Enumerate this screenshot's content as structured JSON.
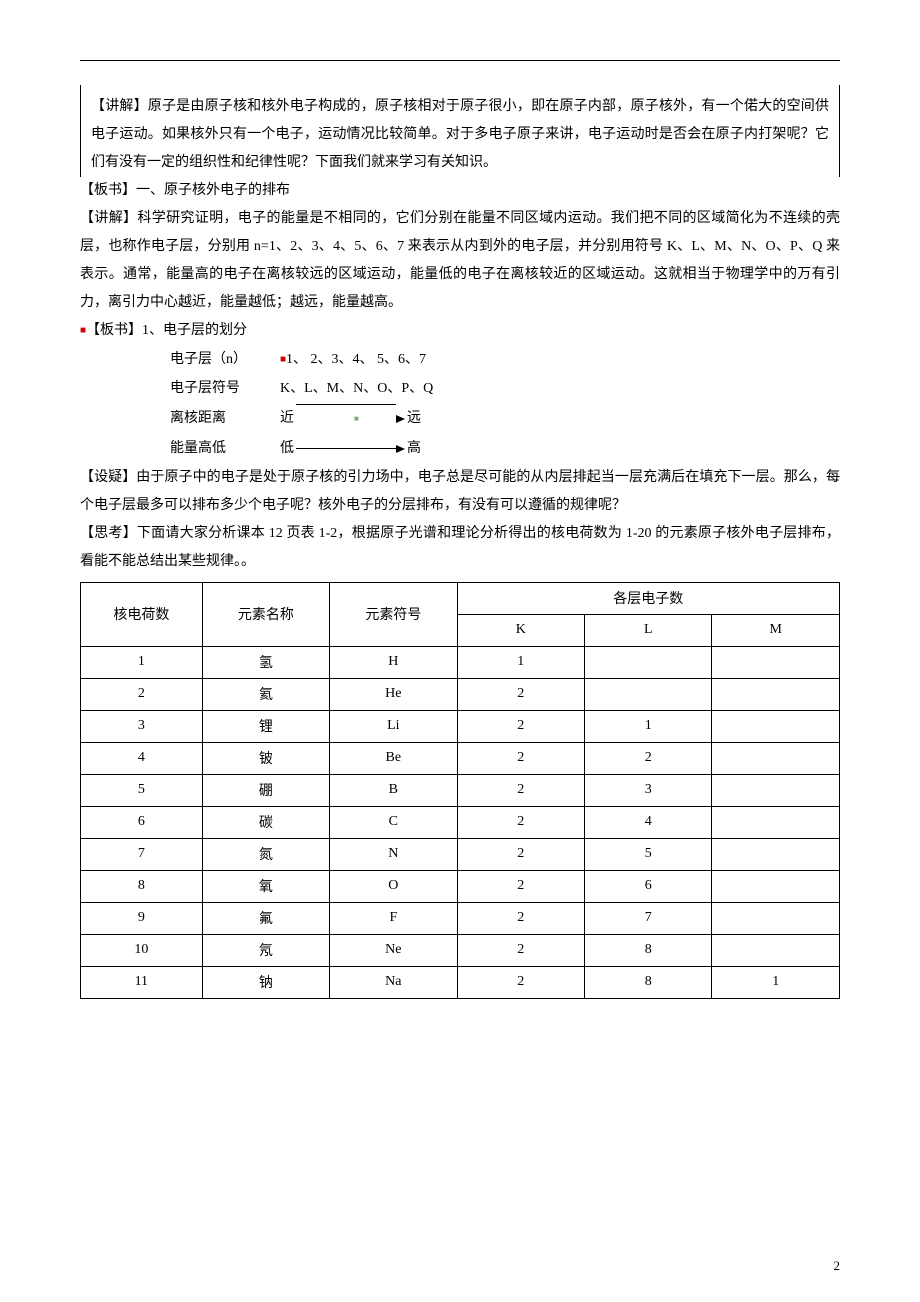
{
  "para1": "【讲解】原子是由原子核和核外电子构成的，原子核相对于原子很小，即在原子内部，原子核外，有一个偌大的空间供电子运动。如果核外只有一个电子，运动情况比较简单。对于多电子原子来讲，电子运动时是否会在原子内打架呢？它们有没有一定的组织性和纪律性呢？下面我们就来学习有关知识。",
  "section1": "【板书】一、原子核外电子的排布",
  "para2": "【讲解】科学研究证明，电子的能量是不相同的，它们分别在能量不同区域内运动。我们把不同的区域简化为不连续的壳层，也称作电子层，分别用 n=1、2、3、4、5、6、7 来表示从内到外的电子层，并分别用符号 K、L、M、N、O、P、Q 来表示。通常，能量高的电子在离核较远的区域运动，能量低的电子在离核较近的区域运动。这就相当于物理学中的万有引力，离引力中心越近，能量越低；越远，能量越高。",
  "section2": "【板书】1、电子层的划分",
  "layers": {
    "r1_label": "电子层（n）",
    "r1_val": "1、 2、3、4、 5、6、7",
    "r2_label": "电子层符号",
    "r2_val": "K、L、M、N、O、P、Q",
    "r3_label": "离核距离",
    "r3_left": "近",
    "r3_right": "远",
    "r4_label": "能量高低",
    "r4_left": "低",
    "r4_right": "高"
  },
  "para3": "【设疑】由于原子中的电子是处于原子核的引力场中，电子总是尽可能的从内层排起当一层充满后在填充下一层。那么，每个电子层最多可以排布多少个电子呢？核外电子的分层排布，有没有可以遵循的规律呢？",
  "para4": "【思考】下面请大家分析课本 12 页表 1-2，根据原子光谱和理论分析得出的核电荷数为 1-20 的元素原子核外电子层排布，看能不能总结出某些规律。。",
  "table": {
    "headers": {
      "c1": "核电荷数",
      "c2": "元素名称",
      "c3": "元素符号",
      "c4": "各层电子数",
      "k": "K",
      "l": "L",
      "m": "M"
    },
    "rows": [
      {
        "n": "1",
        "name": "氢",
        "sym": "H",
        "k": "1",
        "l": "",
        "m": ""
      },
      {
        "n": "2",
        "name": "氦",
        "sym": "He",
        "k": "2",
        "l": "",
        "m": ""
      },
      {
        "n": "3",
        "name": "锂",
        "sym": "Li",
        "k": "2",
        "l": "1",
        "m": ""
      },
      {
        "n": "4",
        "name": "铍",
        "sym": "Be",
        "k": "2",
        "l": "2",
        "m": ""
      },
      {
        "n": "5",
        "name": "硼",
        "sym": "B",
        "k": "2",
        "l": "3",
        "m": ""
      },
      {
        "n": "6",
        "name": "碳",
        "sym": "C",
        "k": "2",
        "l": "4",
        "m": ""
      },
      {
        "n": "7",
        "name": "氮",
        "sym": "N",
        "k": "2",
        "l": "5",
        "m": ""
      },
      {
        "n": "8",
        "name": "氧",
        "sym": "O",
        "k": "2",
        "l": "6",
        "m": ""
      },
      {
        "n": "9",
        "name": "氟",
        "sym": "F",
        "k": "2",
        "l": "7",
        "m": ""
      },
      {
        "n": "10",
        "name": "氖",
        "sym": "Ne",
        "k": "2",
        "l": "8",
        "m": ""
      },
      {
        "n": "11",
        "name": "钠",
        "sym": "Na",
        "k": "2",
        "l": "8",
        "m": "1"
      }
    ]
  },
  "page_number": "2"
}
